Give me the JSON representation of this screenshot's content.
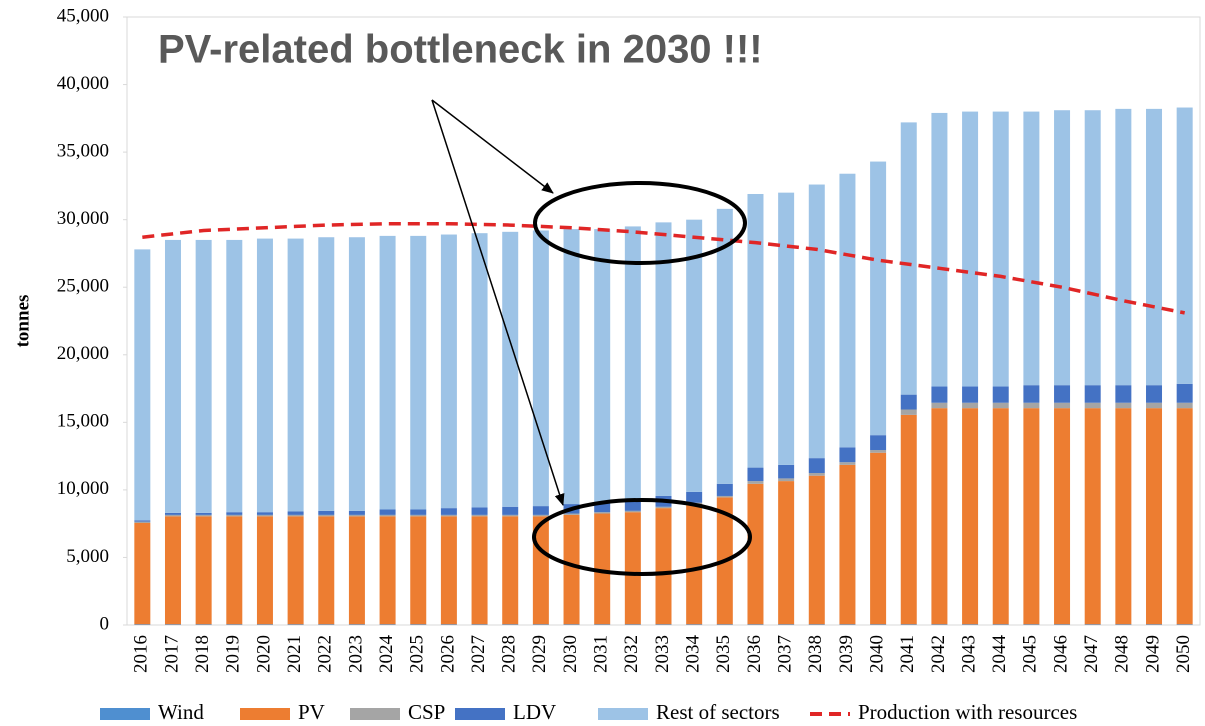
{
  "chart_data": {
    "type": "bar",
    "stacked": true,
    "title": "PV-related bottleneck in 2030 !!!",
    "y_label": "tonnes",
    "categories": [
      "2016",
      "2017",
      "2018",
      "2019",
      "2020",
      "2021",
      "2022",
      "2023",
      "2024",
      "2025",
      "2026",
      "2027",
      "2028",
      "2029",
      "2030",
      "2031",
      "2032",
      "2033",
      "2034",
      "2035",
      "2036",
      "2037",
      "2038",
      "2039",
      "2040",
      "2041",
      "2042",
      "2043",
      "2044",
      "2045",
      "2046",
      "2047",
      "2048",
      "2049",
      "2050"
    ],
    "ylim": [
      0,
      45000
    ],
    "yticks": [
      0,
      {
        "value": 5000,
        "label": "5,000"
      },
      {
        "value": 10000,
        "label": "10,000"
      },
      {
        "value": 15000,
        "label": "15,000"
      },
      {
        "value": 20000,
        "label": "20,000"
      },
      {
        "value": 25000,
        "label": "25,000"
      },
      {
        "value": 30000,
        "label": "30,000"
      },
      {
        "value": 35000,
        "label": "35,000"
      },
      {
        "value": 40000,
        "label": "40,000"
      },
      {
        "value": 45000,
        "label": "45,000"
      }
    ],
    "legend": "bottom",
    "series": [
      {
        "name": "Wind",
        "color": "#4f8fd0",
        "values": [
          50,
          50,
          50,
          50,
          50,
          50,
          50,
          50,
          50,
          50,
          50,
          50,
          50,
          50,
          50,
          50,
          50,
          50,
          50,
          50,
          50,
          50,
          50,
          50,
          50,
          50,
          50,
          50,
          50,
          50,
          50,
          50,
          50,
          50,
          50
        ]
      },
      {
        "name": "PV",
        "color": "#ed7d31",
        "values": [
          7500,
          8000,
          8000,
          8000,
          8000,
          8000,
          8000,
          8000,
          8000,
          8000,
          8000,
          8000,
          8000,
          8000,
          8100,
          8200,
          8300,
          8600,
          8900,
          9400,
          10400,
          10600,
          11000,
          11800,
          12700,
          15500,
          16000,
          16000,
          16000,
          16000,
          16000,
          16000,
          16000,
          16000,
          16000
        ]
      },
      {
        "name": "CSP",
        "color": "#a5a5a5",
        "values": [
          100,
          100,
          100,
          100,
          100,
          100,
          100,
          100,
          100,
          100,
          100,
          100,
          100,
          100,
          100,
          100,
          100,
          100,
          100,
          100,
          200,
          200,
          200,
          200,
          200,
          400,
          400,
          400,
          400,
          400,
          400,
          400,
          400,
          400,
          400
        ]
      },
      {
        "name": "LDV",
        "color": "#4472c4",
        "values": [
          100,
          150,
          150,
          200,
          200,
          250,
          300,
          300,
          400,
          400,
          500,
          550,
          600,
          650,
          700,
          700,
          750,
          800,
          800,
          900,
          1000,
          1000,
          1100,
          1100,
          1100,
          1100,
          1200,
          1200,
          1200,
          1300,
          1300,
          1300,
          1300,
          1300,
          1400
        ]
      },
      {
        "name": "Rest of sectors",
        "color": "#9dc3e6",
        "values": [
          20050,
          20200,
          20200,
          20150,
          20250,
          20200,
          20250,
          20250,
          20250,
          20250,
          20250,
          20300,
          20350,
          20400,
          20350,
          20250,
          20300,
          20250,
          20150,
          20350,
          20250,
          20150,
          20250,
          20250,
          20250,
          20150,
          20250,
          20350,
          20350,
          20250,
          20350,
          20350,
          20450,
          20450,
          20450
        ]
      },
      {
        "name": "Production with resources",
        "type": "line",
        "dashed": true,
        "color": "#e02626",
        "values": [
          28700,
          28950,
          29200,
          29300,
          29400,
          29500,
          29600,
          29650,
          29700,
          29700,
          29700,
          29650,
          29600,
          29500,
          29400,
          29250,
          29100,
          28900,
          28700,
          28500,
          28300,
          28050,
          27800,
          27400,
          27000,
          26700,
          26400,
          26100,
          25800,
          25400,
          25000,
          24500,
          24000,
          23550,
          23100
        ]
      }
    ]
  }
}
